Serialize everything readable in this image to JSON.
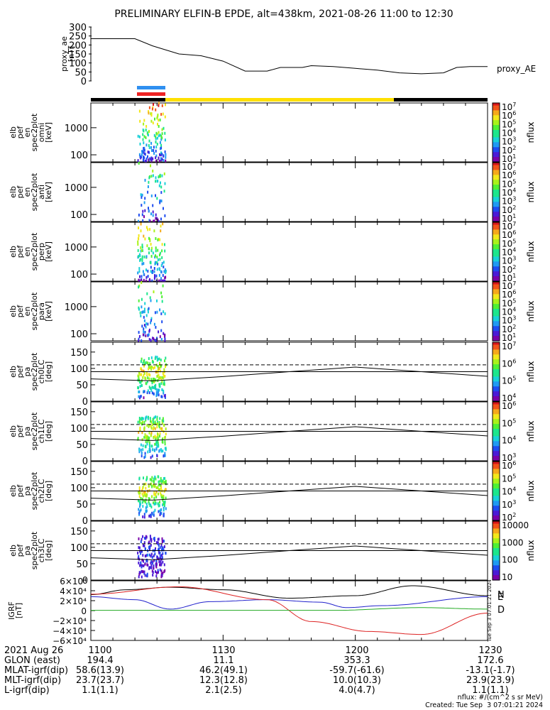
{
  "title": "PRELIMINARY ELFIN-B EPDE, alt=438km, 2021-08-26 11:00 to 12:30",
  "colors": {
    "bar_black": "#000000",
    "bar_yellow": "#ffe000",
    "bar_blue": "#2f8ff0",
    "bar_red": "#ee2222",
    "bx": "#000000",
    "by": "#2222cc",
    "bz": "#22aa22",
    "bd": "#dd2222"
  },
  "chart_data": [
    {
      "type": "line",
      "name": "proxy_ae",
      "ylabel": "proxy_ae\n[nT]",
      "legend": "proxy_AE",
      "ylim": [
        0,
        300
      ],
      "yticks": [
        "300",
        "250",
        "200",
        "150",
        "100",
        "50",
        "0"
      ],
      "x_minutes": [
        0,
        10,
        14,
        20,
        25,
        30,
        35,
        40,
        43,
        48,
        50,
        55,
        60,
        65,
        70,
        75,
        80,
        83,
        86,
        90
      ],
      "values": [
        235,
        235,
        195,
        150,
        140,
        110,
        55,
        55,
        75,
        75,
        85,
        80,
        70,
        60,
        45,
        40,
        45,
        75,
        80,
        80
      ]
    },
    {
      "type": "heatmap",
      "name": "spec2plot omni",
      "ylabel": "elb\npef\nen\nspec2plot\nomni\n[keV]",
      "yticks": [
        "1000",
        "100"
      ],
      "ztitle": "nflux",
      "ztick_exponents": [
        "7",
        "6",
        "5",
        "4",
        "3",
        "2",
        "1"
      ],
      "colorbar_range": [
        "10^1",
        "10^7"
      ]
    },
    {
      "type": "heatmap",
      "name": "spec2plot anti",
      "ylabel": "elb\npef\nen\nspec2plot\nanti\n[keV]",
      "yticks": [
        "1000",
        "100"
      ],
      "ztitle": "nflux",
      "ztick_exponents": [
        "7",
        "6",
        "5",
        "4",
        "3",
        "2",
        "1"
      ]
    },
    {
      "type": "heatmap",
      "name": "spec2plot perp",
      "ylabel": "elb\npef\nen\nspec2plot\nperp\n[keV]",
      "yticks": [
        "1000",
        "100"
      ],
      "ztitle": "nflux",
      "ztick_exponents": [
        "7",
        "6",
        "5",
        "4",
        "3",
        "2",
        "1"
      ]
    },
    {
      "type": "heatmap",
      "name": "spec2plot para",
      "ylabel": "elb\npef\nen\nspec2plot\npara\n[keV]",
      "yticks": [
        "1000",
        "100"
      ],
      "ztitle": "nflux",
      "ztick_exponents": [
        "7",
        "6",
        "5",
        "4",
        "3",
        "2",
        "1"
      ]
    },
    {
      "type": "heatmap",
      "name": "spec2plot ch0LC",
      "ylabel": "elb\npef\npa\nspec2plot\nch0LC\n[deg]",
      "yticks": [
        "150",
        "100",
        "50",
        "0"
      ],
      "ylim": [
        0,
        180
      ],
      "ztitle": "nflux",
      "ztick_exponents": [
        "7",
        "6",
        "5",
        "4"
      ]
    },
    {
      "type": "heatmap",
      "name": "spec2plot ch1LC",
      "ylabel": "elb\npef\npa\nspec2plot\nch1LC\n[deg]",
      "yticks": [
        "150",
        "100",
        "50",
        "0"
      ],
      "ylim": [
        0,
        180
      ],
      "ztitle": "nflux",
      "ztick_exponents": [
        "6",
        "5",
        "4",
        "3"
      ]
    },
    {
      "type": "heatmap",
      "name": "spec2plot ch2LC",
      "ylabel": "elb\npef\npa\nspec2plot\nch2LC\n[deg]",
      "yticks": [
        "150",
        "100",
        "50",
        "0"
      ],
      "ylim": [
        0,
        180
      ],
      "ztitle": "nflux",
      "ztick_exponents": [
        "6",
        "5",
        "4",
        "3",
        "2"
      ]
    },
    {
      "type": "heatmap",
      "name": "spec2plot ch3LC",
      "ylabel": "elb\npef\npa\nspec2plot\nch3LC\n[deg]",
      "yticks": [
        "150",
        "100",
        "50",
        "0"
      ],
      "ylim": [
        0,
        180
      ],
      "ztitle": "nflux",
      "zticks": [
        "10000",
        "1000",
        "100",
        "10"
      ]
    },
    {
      "type": "line",
      "name": "IGRF",
      "ylabel": "IGRF\n[nT]",
      "ylim": [
        -60000,
        60000
      ],
      "yticks": [
        "6×10⁴",
        "4×10⁴",
        "2×10⁴",
        "0",
        "−2×10⁴",
        "−4×10⁴",
        "−6×10⁴"
      ],
      "legend": [
        "N",
        "E",
        "D"
      ],
      "series": [
        {
          "name": "N",
          "x_minutes": [
            0,
            8,
            18,
            30,
            45,
            60,
            73,
            90
          ],
          "values": [
            32000,
            42000,
            47000,
            42000,
            25000,
            30000,
            50000,
            30000
          ]
        },
        {
          "name": "E",
          "x_minutes": [
            0,
            10,
            18,
            27,
            40,
            52,
            58,
            66,
            90
          ],
          "values": [
            28000,
            22000,
            3000,
            18000,
            22000,
            17000,
            6000,
            10000,
            28000
          ]
        },
        {
          "name": "D",
          "x_minutes": [
            0,
            20,
            40,
            50,
            63,
            75,
            90
          ],
          "values": [
            33000,
            48000,
            22000,
            -22000,
            -42000,
            -48000,
            -5000
          ]
        },
        {
          "name": "zero",
          "x_minutes": [
            0,
            55,
            75,
            90
          ],
          "values": [
            500,
            500,
            6000,
            3000
          ]
        }
      ]
    }
  ],
  "xaxis": {
    "labels": [
      "1100",
      "1130",
      "1200",
      "1230"
    ],
    "rows": [
      {
        "label": "2021 Aug 26",
        "values": [
          "1100",
          "1130",
          "1200",
          "1230"
        ]
      },
      {
        "label": "GLON (east)",
        "values": [
          "194.4",
          "11.1",
          "353.3",
          "172.6"
        ]
      },
      {
        "label": "MLAT-igrf(dip)",
        "values": [
          "58.6(13.9)",
          "46.2(49.1)",
          "-59.7(-61.6)",
          "-13.1(-1.7)"
        ]
      },
      {
        "label": "MLT-igrf(dip)",
        "values": [
          "23.7(23.7)",
          "12.3(12.8)",
          "10.0(10.3)",
          "23.9(23.9)"
        ]
      },
      {
        "label": "L-igrf(dip)",
        "values": [
          "1.1(1.1)",
          "2.1(2.5)",
          "4.0(4.7)",
          "1.1(1.1)"
        ]
      }
    ]
  },
  "credits": {
    "units": "nflux: #/(cm^2 s sr MeV)",
    "created": "Created: Tue Sep  3 07:01:21 2024",
    "side_stamp": "Tue Sep  3 07:01:21 2024"
  }
}
